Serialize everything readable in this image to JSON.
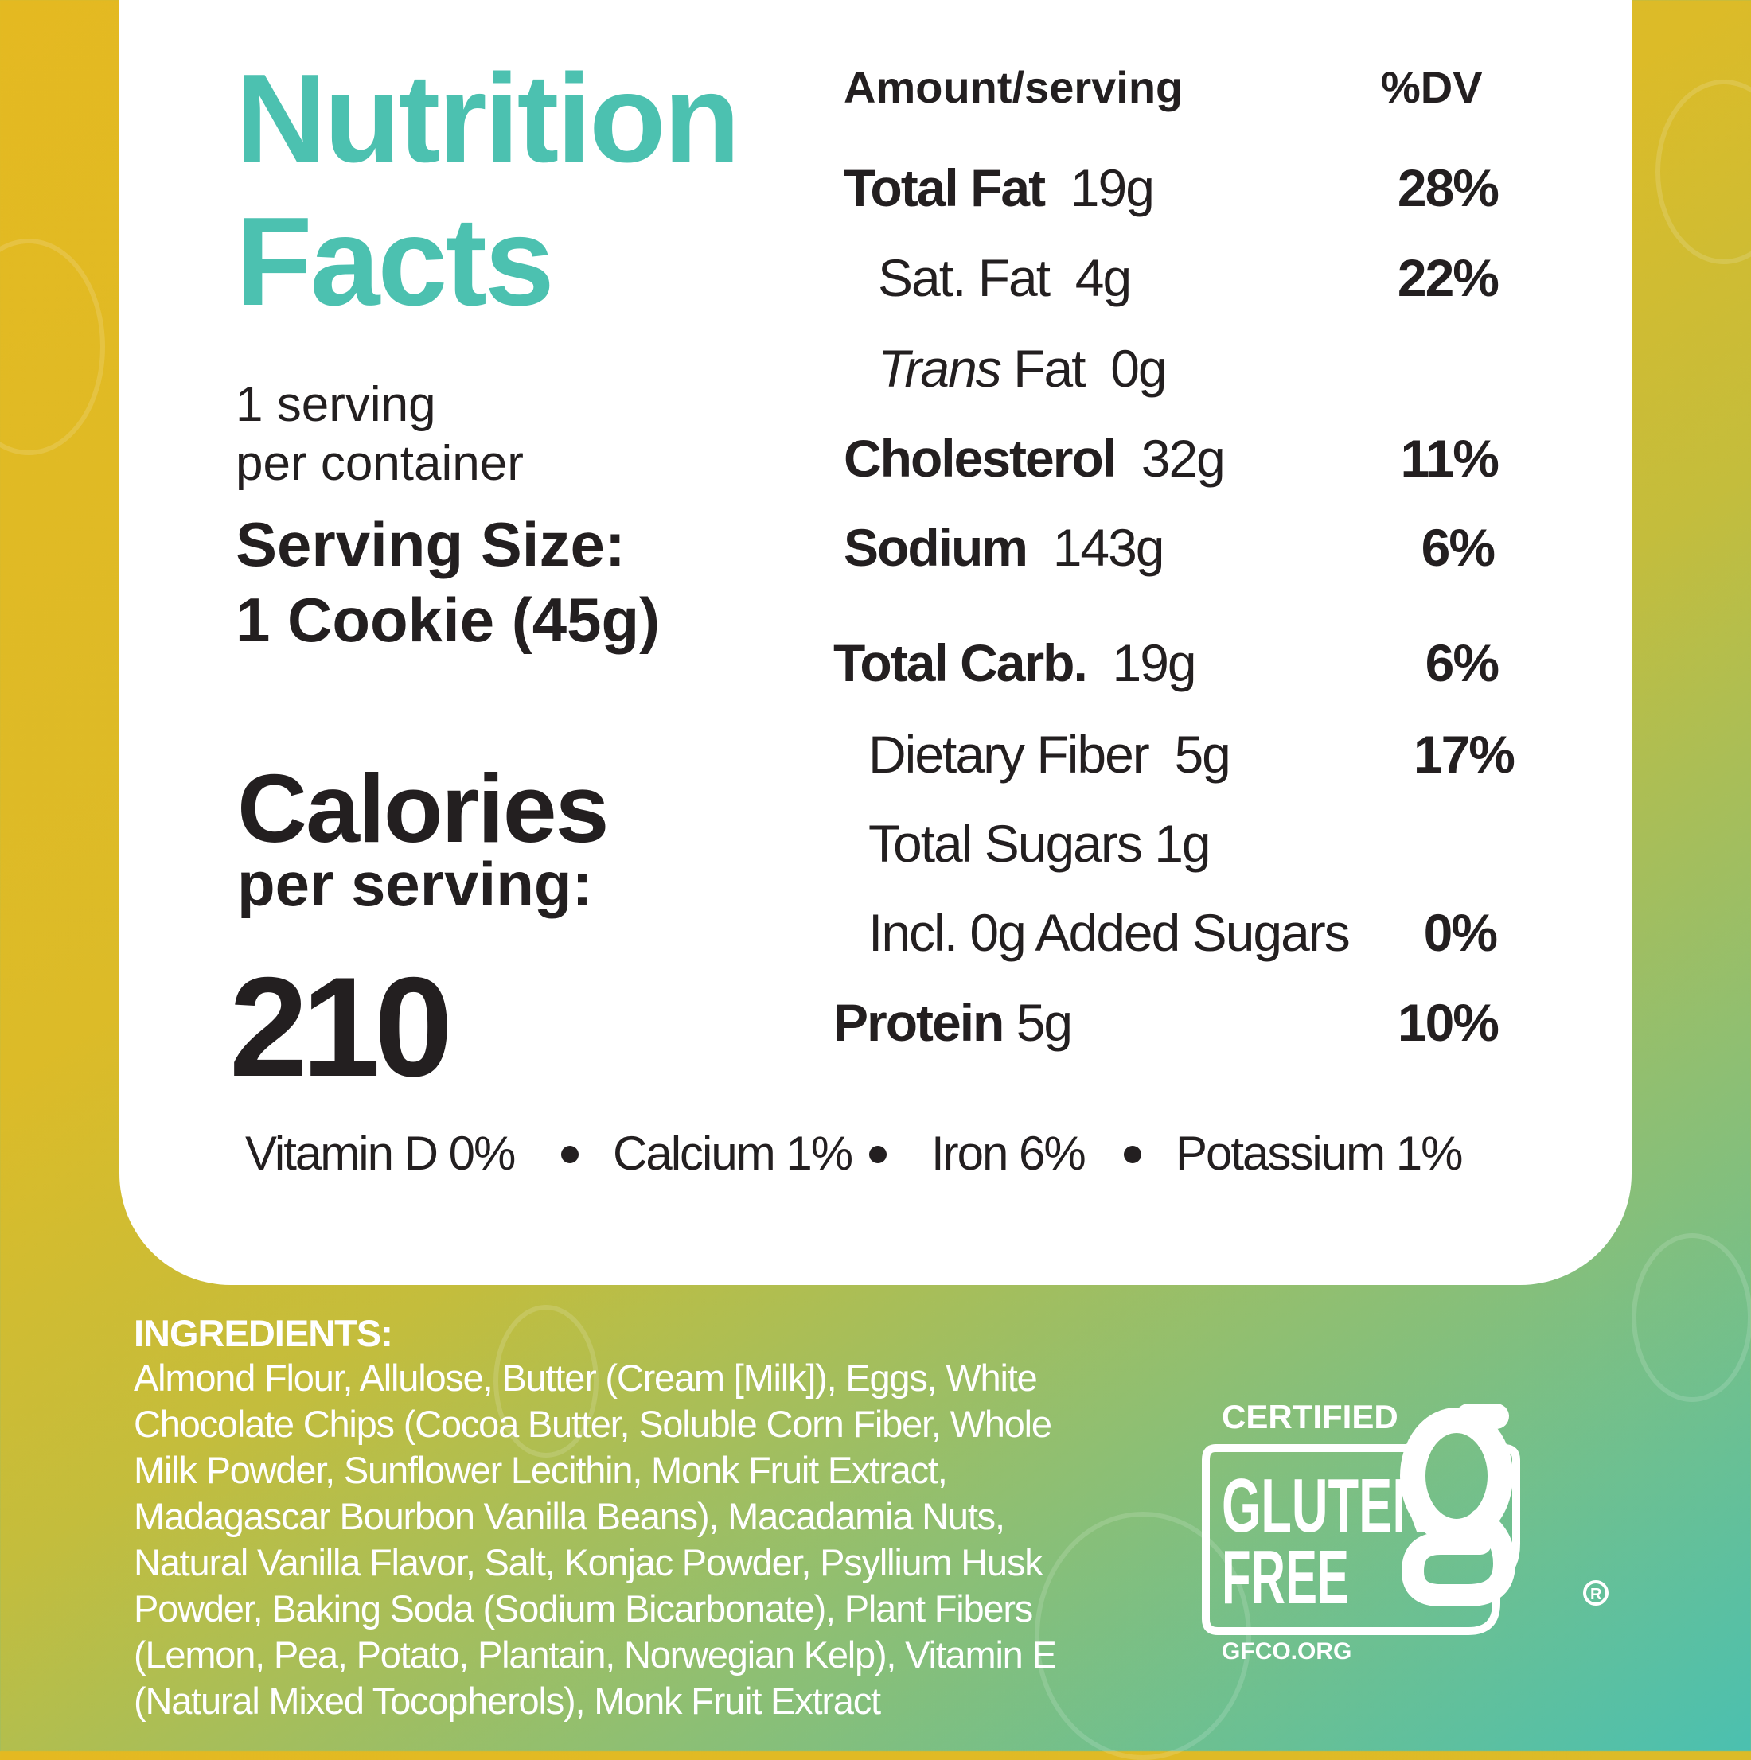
{
  "colors": {
    "accent": "#4cc1b0",
    "text": "#231f20",
    "background_start": "#e4b921",
    "background_end": "#4bc0b0"
  },
  "title": {
    "line1": "Nutrition",
    "line2": "Facts"
  },
  "servings": {
    "line1": "1 serving",
    "line2": "per container"
  },
  "serving_size": {
    "label": "Serving Size:",
    "value": "1 Cookie (45g)"
  },
  "calories": {
    "label": "Calories",
    "sublabel": "per serving:",
    "value": "210"
  },
  "header": {
    "amount": "Amount/serving",
    "dv": "%DV"
  },
  "nutrients": [
    {
      "name": "Total Fat",
      "amount": "19g",
      "dv": "28%"
    },
    {
      "name": "Sat. Fat",
      "amount": "4g",
      "dv": "22%"
    },
    {
      "name_italic": "Trans",
      "name": "Fat",
      "amount": "0g",
      "dv": ""
    },
    {
      "name": "Cholesterol",
      "amount": "32g",
      "dv": "11%"
    },
    {
      "name": "Sodium",
      "amount": "143g",
      "dv": "6%"
    },
    {
      "name": "Total Carb.",
      "amount": "19g",
      "dv": "6%"
    },
    {
      "name": "Dietary Fiber",
      "amount": "5g",
      "dv": "17%"
    },
    {
      "name": "Total Sugars",
      "amount": "1g",
      "dv": ""
    },
    {
      "name": "Incl. 0g Added Sugars",
      "amount": "",
      "dv": "0%"
    },
    {
      "name": "Protein",
      "amount": "5g",
      "dv": "10%"
    }
  ],
  "vitamins": [
    "Vitamin D 0%",
    "Calcium 1%",
    "Iron 6%",
    "Potassium 1%"
  ],
  "ingredients": {
    "heading": "INGREDIENTS:",
    "lines": [
      "Almond Flour, Allulose, Butter (Cream [Milk]), Eggs, White",
      "Chocolate Chips (Cocoa Butter, Soluble Corn Fiber, Whole",
      "Milk Powder, Sunflower Lecithin, Monk Fruit Extract,",
      "Madagascar Bourbon Vanilla Beans), Macadamia Nuts,",
      "Natural Vanilla Flavor, Salt, Konjac Powder, Psyllium Husk",
      "Powder, Baking Soda (Sodium Bicarbonate), Plant Fibers",
      "(Lemon, Pea, Potato, Plantain, Norwegian Kelp), Vitamin E",
      "(Natural Mixed Tocopherols), Monk Fruit Extract"
    ]
  },
  "logo": {
    "top": "CERTIFIED",
    "line1": "GLUTEN",
    "line2": "FREE",
    "url": "GFCO.ORG",
    "mark": "®"
  }
}
